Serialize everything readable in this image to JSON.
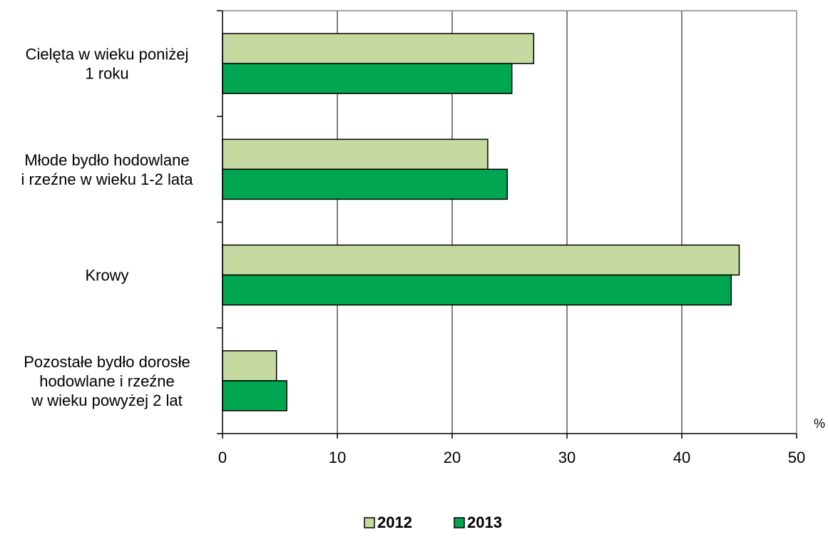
{
  "chart_data": {
    "type": "bar",
    "orientation": "horizontal",
    "categories": [
      [
        "Cielęta w wieku poniżej",
        "1 roku"
      ],
      [
        "Młode bydło hodowlane",
        "i rzeźne w wieku 1-2 lata"
      ],
      [
        "Krowy"
      ],
      [
        "Pozostałe bydło dorosłe",
        "hodowlane i rzeźne",
        "w wieku powyżej 2 lat"
      ]
    ],
    "series": [
      {
        "name": "2012",
        "color": "#c5d9a0",
        "values": [
          27.1,
          23.1,
          45.0,
          4.7
        ]
      },
      {
        "name": "2013",
        "color": "#00a650",
        "values": [
          25.2,
          24.8,
          44.3,
          5.6
        ]
      }
    ],
    "xlim": [
      0,
      50
    ],
    "xticks": [
      "0",
      "10",
      "20",
      "30",
      "40",
      "50"
    ],
    "xunit": "%",
    "grid": true,
    "legend": "bottom"
  }
}
